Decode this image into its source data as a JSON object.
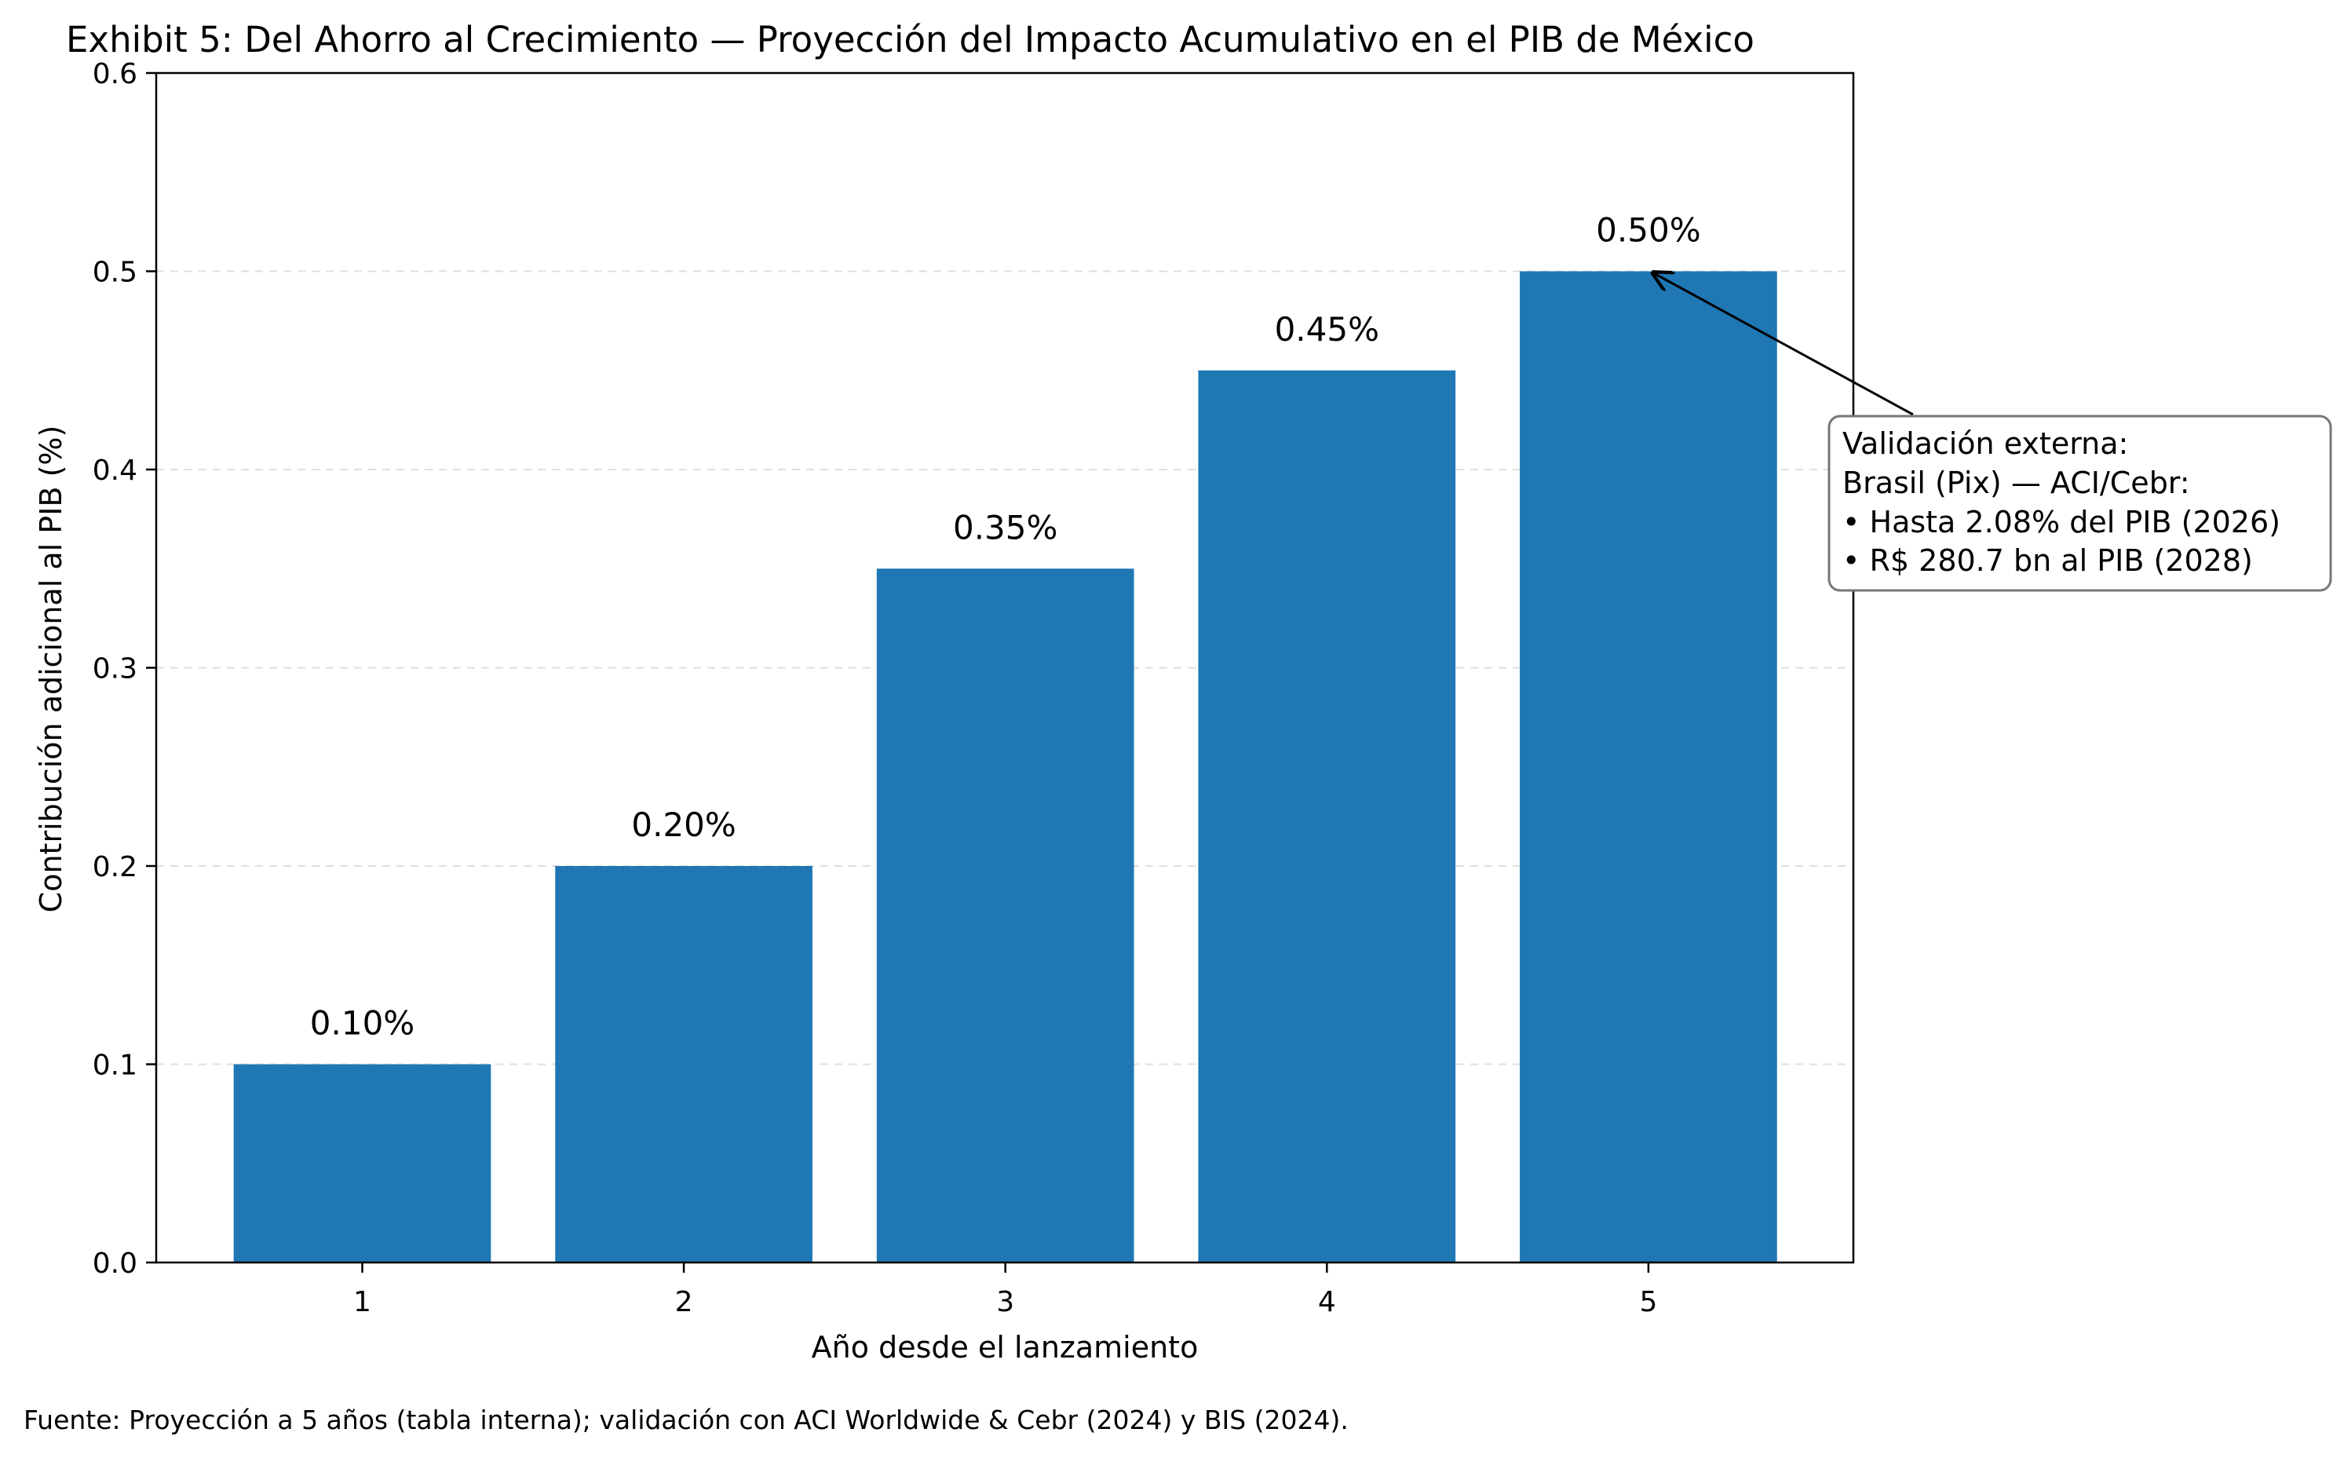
{
  "chart_data": {
    "type": "bar",
    "title": "Exhibit 5: Del Ahorro al Crecimiento — Proyección del Impacto Acumulativo en el PIB de México",
    "xlabel": "Año desde el lanzamiento",
    "ylabel": "Contribución adicional al PIB (%)",
    "categories": [
      "1",
      "2",
      "3",
      "4",
      "5"
    ],
    "values": [
      0.1,
      0.2,
      0.35,
      0.45,
      0.5
    ],
    "data_labels": [
      "0.10%",
      "0.20%",
      "0.35%",
      "0.45%",
      "0.50%"
    ],
    "ylim": [
      0,
      0.6
    ],
    "yticks": [
      "0.0",
      "0.1",
      "0.2",
      "0.3",
      "0.4",
      "0.5",
      "0.6"
    ],
    "grid": "horizontal dashed",
    "bar_color": "#1f77b4",
    "annotation": {
      "target_category": "5",
      "lines": [
        "Validación externa:",
        "Brasil (Pix) — ACI/Cebr:",
        "• Hasta 2.08% del PIB (2026)",
        "• R$ 280.7 bn al PIB (2028)"
      ]
    }
  },
  "source_note": "Fuente: Proyección a 5 años (tabla interna); validación con ACI Worldwide & Cebr (2024) y BIS (2024)."
}
